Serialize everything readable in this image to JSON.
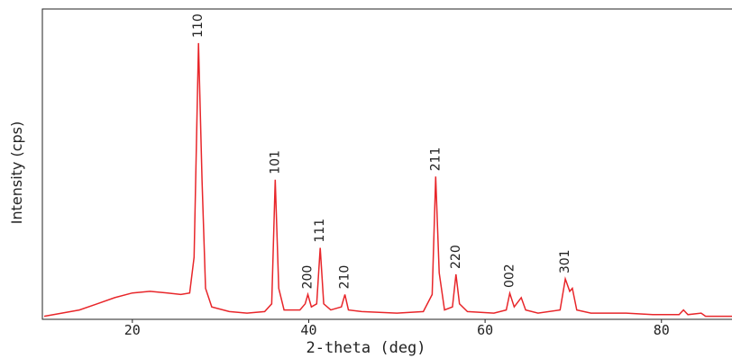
{
  "chart_data": {
    "type": "line",
    "x_label": "2-theta (deg)",
    "y_label": "Intensity (cps)",
    "xlim": [
      10,
      88
    ],
    "ylim": [
      0,
      100
    ],
    "xticks": [
      20,
      40,
      60,
      80
    ],
    "color": "#e8262a",
    "x": [
      10,
      12,
      14,
      16,
      18,
      20,
      22,
      24,
      25.5,
      26.5,
      27.0,
      27.5,
      27.9,
      28.3,
      29,
      31,
      33,
      35,
      35.8,
      36.2,
      36.6,
      37.2,
      39,
      39.6,
      39.9,
      40.3,
      40.9,
      41.3,
      41.7,
      42.5,
      43.7,
      44.1,
      44.5,
      46,
      50,
      53,
      54,
      54.4,
      54.8,
      55.4,
      56.3,
      56.7,
      57.1,
      58,
      61,
      62.4,
      62.8,
      63.3,
      64.1,
      64.6,
      66,
      68.5,
      69.1,
      69.6,
      69.9,
      70.4,
      72,
      76,
      79,
      82,
      82.5,
      83,
      84.5,
      85,
      88
    ],
    "values": [
      1,
      2,
      3,
      5,
      7,
      8.5,
      9,
      8.5,
      8,
      8.5,
      20,
      89,
      45,
      10,
      4,
      2.5,
      2,
      2.5,
      5,
      45,
      10,
      3,
      3,
      5,
      8,
      4,
      5,
      23,
      5,
      3,
      4,
      8,
      3,
      2.5,
      2,
      2.5,
      8,
      46,
      15,
      3,
      4,
      14.5,
      5,
      2.5,
      2,
      3,
      8.4,
      4,
      7,
      3,
      2,
      3,
      13,
      9,
      10,
      3,
      2,
      2,
      1.5,
      1.5,
      3,
      1.5,
      2,
      1,
      1
    ],
    "annotations": [
      {
        "text": "110",
        "x": 27.5,
        "y": 89
      },
      {
        "text": "101",
        "x": 36.2,
        "y": 45
      },
      {
        "text": "200",
        "x": 39.9,
        "y": 8
      },
      {
        "text": "111",
        "x": 41.3,
        "y": 23
      },
      {
        "text": "210",
        "x": 44.1,
        "y": 8
      },
      {
        "text": "211",
        "x": 54.4,
        "y": 46
      },
      {
        "text": "220",
        "x": 56.7,
        "y": 14.5
      },
      {
        "text": "002",
        "x": 62.8,
        "y": 8.4
      },
      {
        "text": "301",
        "x": 69.1,
        "y": 13
      }
    ]
  }
}
